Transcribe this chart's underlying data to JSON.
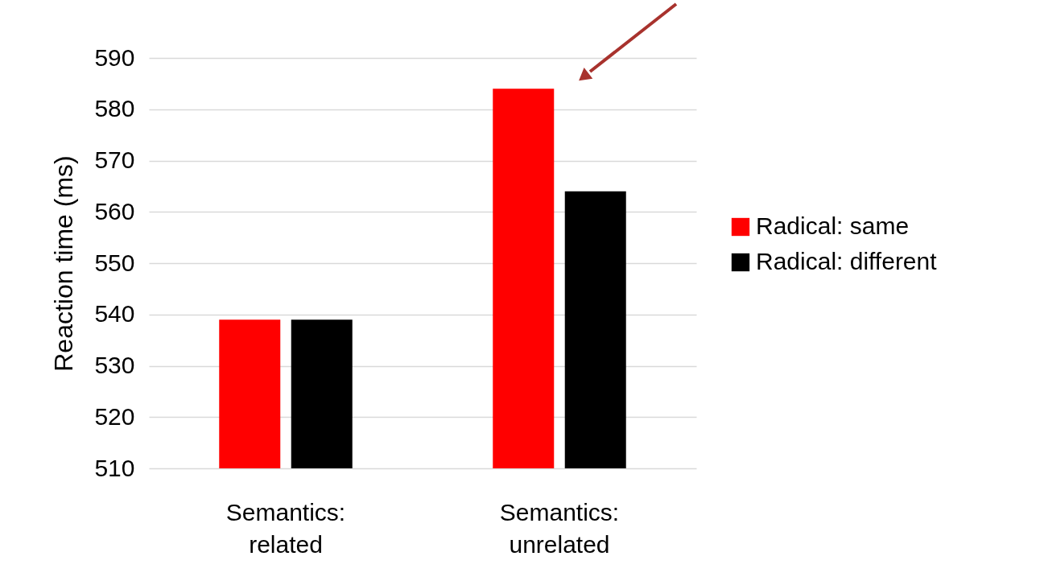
{
  "chart_data": {
    "type": "bar",
    "ylabel": "Reaction time (ms)",
    "categories": [
      "Semantics: related",
      "Semantics: unrelated"
    ],
    "series": [
      {
        "name": "Radical: same",
        "color": "#ff0000",
        "values": [
          539,
          584
        ]
      },
      {
        "name": "Radical: different",
        "color": "#000000",
        "values": [
          539,
          564
        ]
      }
    ],
    "ylim": [
      510,
      590
    ],
    "yticks": [
      510,
      520,
      530,
      540,
      550,
      560,
      570,
      580,
      590
    ],
    "grid": "y",
    "legend": "right"
  }
}
